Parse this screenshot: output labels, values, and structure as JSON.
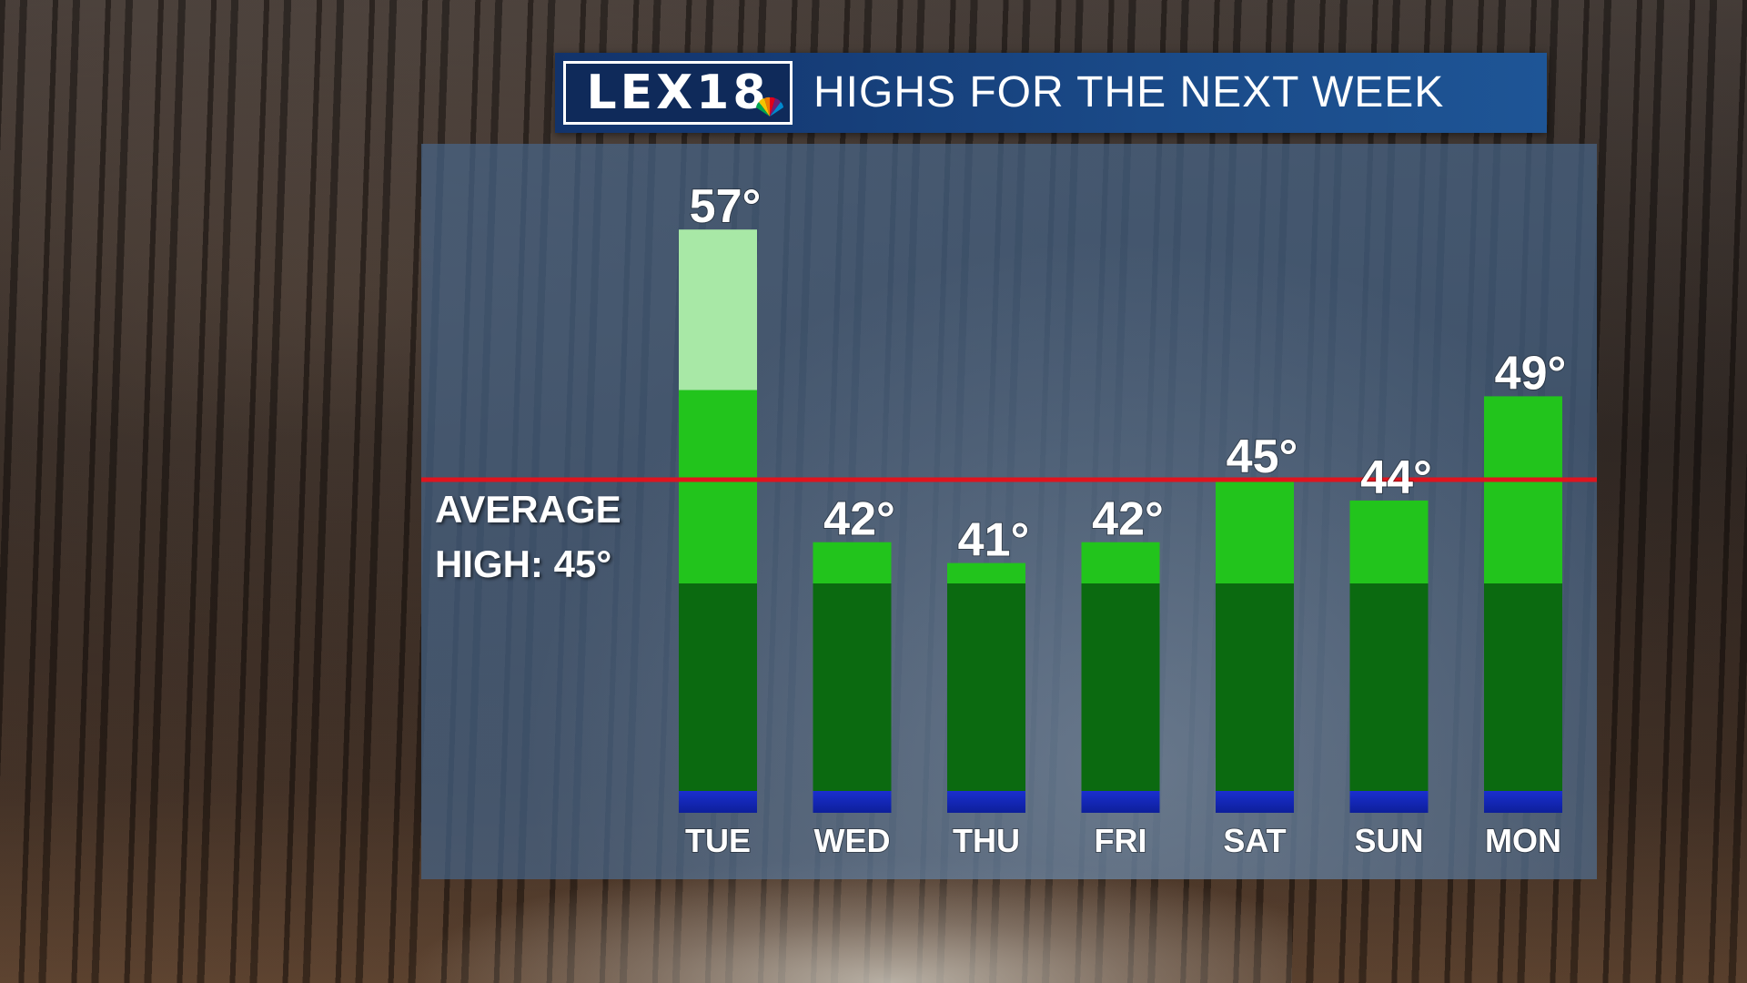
{
  "header": {
    "logo_text": "LEX18",
    "title": "HIGHS FOR THE NEXT WEEK"
  },
  "average": {
    "label_line1": "AVERAGE",
    "label_line2": "HIGH: 45°",
    "value": 45,
    "line_color": "#e0141e"
  },
  "chart_data": {
    "type": "bar",
    "title": "HIGHS FOR THE NEXT WEEK",
    "categories": [
      "TUE",
      "WED",
      "THU",
      "FRI",
      "SAT",
      "SUN",
      "MON"
    ],
    "values": [
      57,
      42,
      41,
      42,
      45,
      44,
      49
    ],
    "value_labels": [
      "57°",
      "42°",
      "41°",
      "42°",
      "45°",
      "44°",
      "49°"
    ],
    "unit": "°",
    "reference_line": 45,
    "colors": {
      "base_blue": "#1a2fd0",
      "dark_green": "#0b6a10",
      "bright_green": "#22c41c",
      "light_green": "#a8e8a6"
    }
  }
}
